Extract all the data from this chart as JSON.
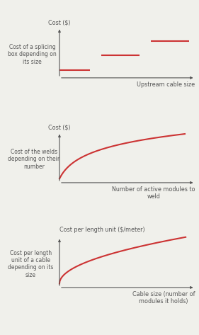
{
  "fig_width": 2.81,
  "fig_height": 4.73,
  "dpi": 100,
  "bg_color": "#f0f0eb",
  "red_color": "#cc3333",
  "text_color": "#555555",
  "font_size_label": 5.8,
  "font_size_annot": 5.5,
  "plots": [
    {
      "ylabel": "Cost ($)",
      "ylabel_above": false,
      "xlabel": "Upstream cable size",
      "annotation": "Cost of a splicing\nbox depending on\nits size",
      "type": "step"
    },
    {
      "ylabel": "Cost ($)",
      "ylabel_above": false,
      "xlabel": "Number of active modules to\nweld",
      "annotation": "Cost of the welds\ndepending on their\nnumber",
      "type": "log"
    },
    {
      "ylabel": "Cost per length unit ($/meter)",
      "ylabel_above": true,
      "xlabel": "Cable size (number of\nmodules it holds)",
      "annotation": "Cost per length\nunit of a cable\ndepending on its\nsize",
      "type": "sqrt"
    }
  ]
}
